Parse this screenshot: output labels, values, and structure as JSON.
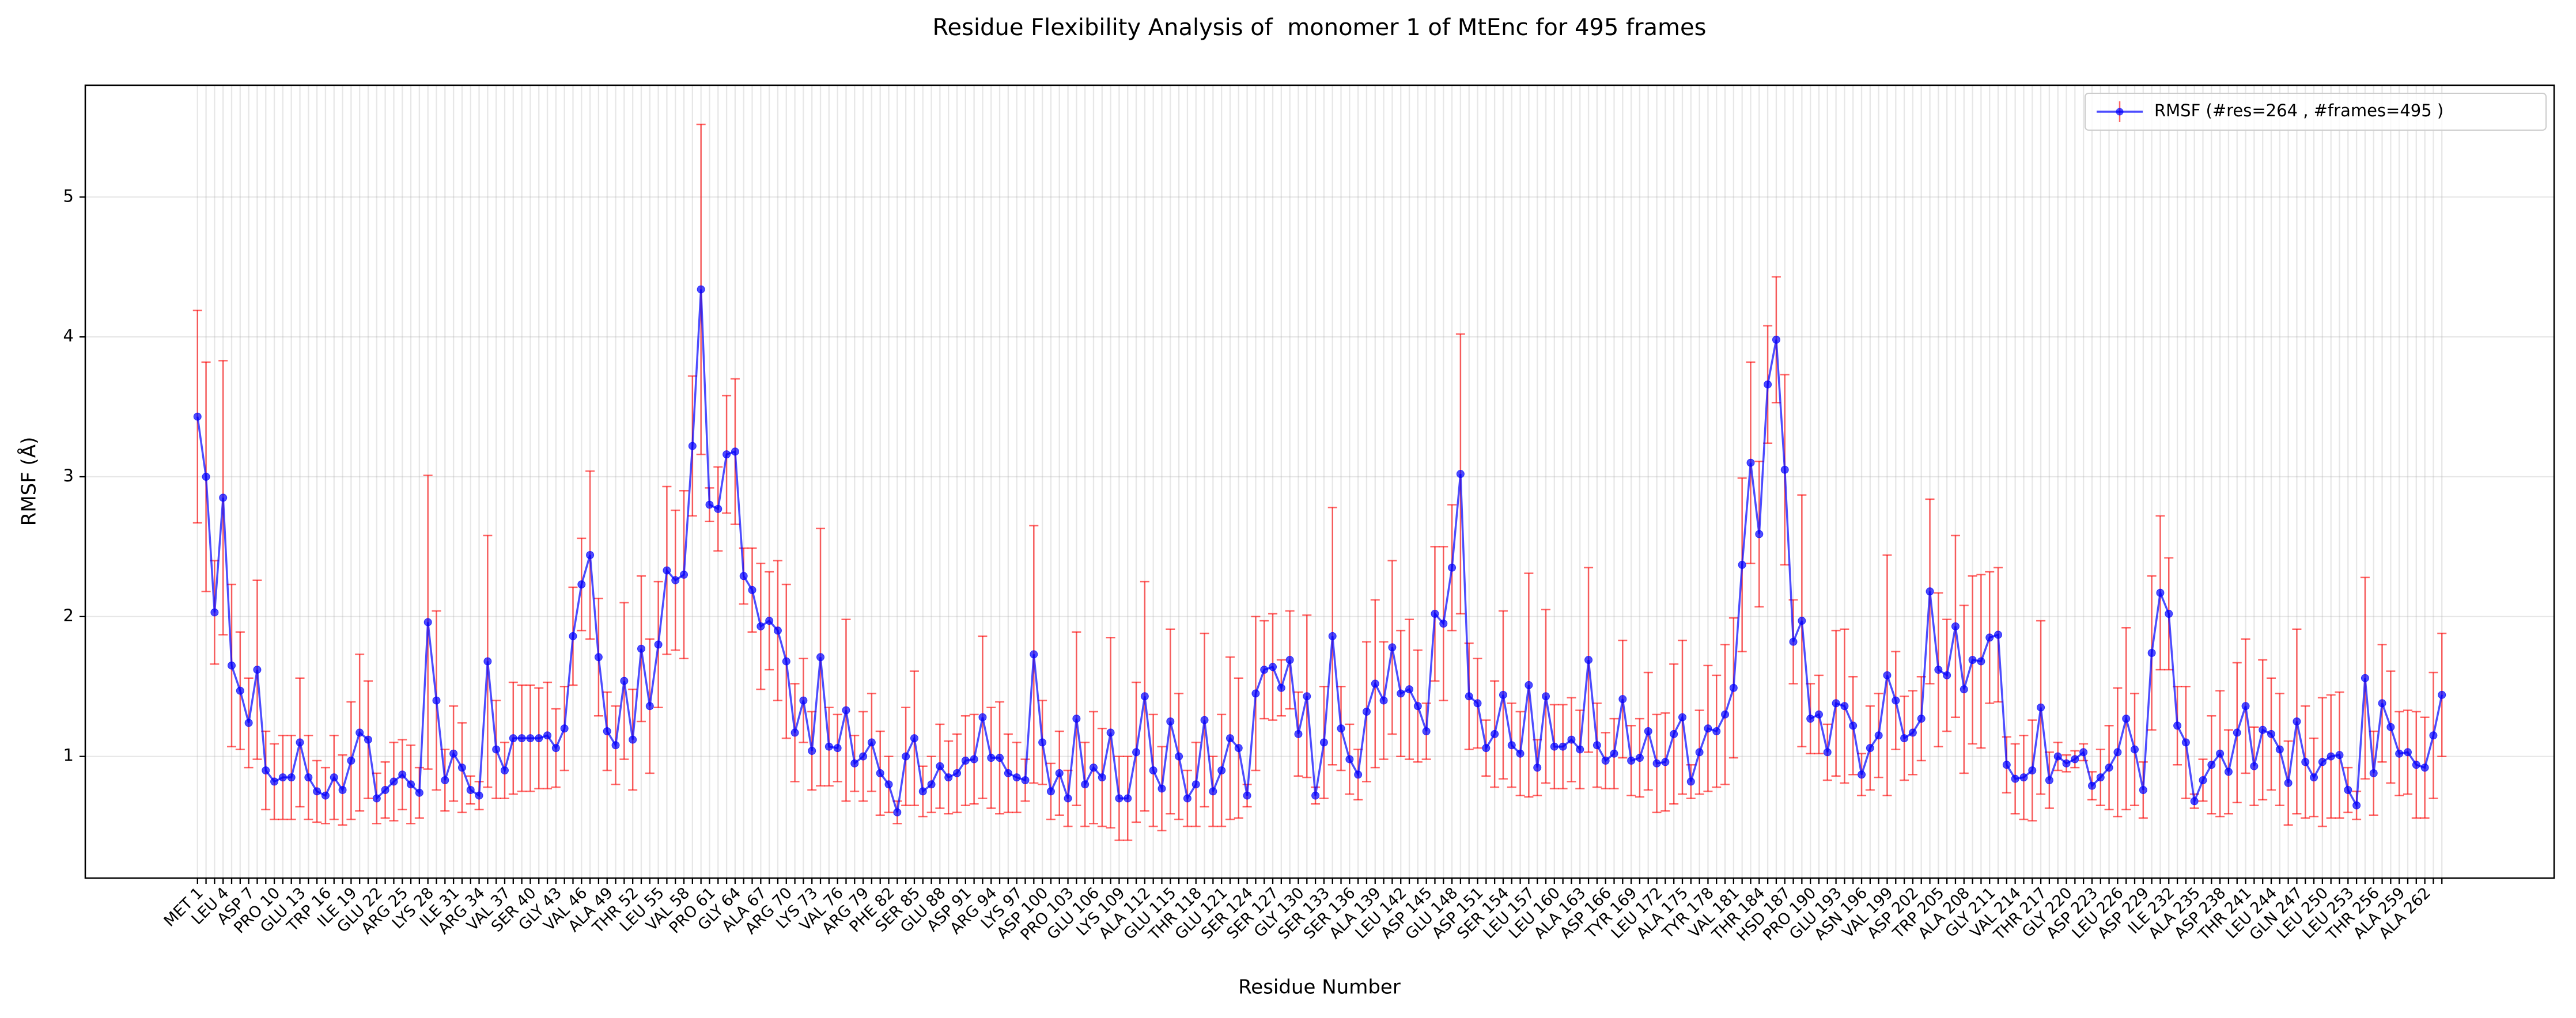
{
  "chart_data": {
    "type": "line",
    "title": "Residue Flexibility Analysis of  monomer 1 of MtEnc for 495 frames",
    "x_label": "Residue Number",
    "y_label": "RMSF (Å)",
    "legend": "upper right",
    "grid": true,
    "ylim": [
      0.13,
      5.8
    ],
    "yticks": [
      1,
      2,
      3,
      4,
      5
    ],
    "categories": [
      "MET 1",
      null,
      null,
      "LEU 4",
      null,
      null,
      "ASP 7",
      null,
      null,
      "PRO 10",
      null,
      null,
      "GLU 13",
      null,
      null,
      "TRP 16",
      null,
      null,
      "ILE 19",
      null,
      null,
      "GLU 22",
      null,
      null,
      "ARG 25",
      null,
      null,
      "LYS 28",
      null,
      null,
      "ILE 31",
      null,
      null,
      "ARG 34",
      null,
      null,
      "VAL 37",
      null,
      null,
      "SER 40",
      null,
      null,
      "GLY 43",
      null,
      null,
      "VAL 46",
      null,
      null,
      "ALA 49",
      null,
      null,
      "THR 52",
      null,
      null,
      "LEU 55",
      null,
      null,
      "VAL 58",
      null,
      null,
      "PRO 61",
      null,
      null,
      "GLY 64",
      null,
      null,
      "ALA 67",
      null,
      null,
      "ARG 70",
      null,
      null,
      "LYS 73",
      null,
      null,
      "VAL 76",
      null,
      null,
      "ARG 79",
      null,
      null,
      "PHE 82",
      null,
      null,
      "SER 85",
      null,
      null,
      "GLU 88",
      null,
      null,
      "ASP 91",
      null,
      null,
      "ARG 94",
      null,
      null,
      "LYS 97",
      null,
      null,
      "ASP 100",
      null,
      null,
      "PRO 103",
      null,
      null,
      "GLU 106",
      null,
      null,
      "LYS 109",
      null,
      null,
      "ALA 112",
      null,
      null,
      "GLU 115",
      null,
      null,
      "THR 118",
      null,
      null,
      "GLU 121",
      null,
      null,
      "SER 124",
      null,
      null,
      "SER 127",
      null,
      null,
      "GLY 130",
      null,
      null,
      "SER 133",
      null,
      null,
      "SER 136",
      null,
      null,
      "ALA 139",
      null,
      null,
      "LEU 142",
      null,
      null,
      "ASP 145",
      null,
      null,
      "GLU 148",
      null,
      null,
      "ASP 151",
      null,
      null,
      "SER 154",
      null,
      null,
      "LEU 157",
      null,
      null,
      "LEU 160",
      null,
      null,
      "ALA 163",
      null,
      null,
      "ASP 166",
      null,
      null,
      "TYR 169",
      null,
      null,
      "LEU 172",
      null,
      null,
      "ALA 175",
      null,
      null,
      "TYR 178",
      null,
      null,
      "VAL 181",
      null,
      null,
      "THR 184",
      null,
      null,
      "HSD 187",
      null,
      null,
      "PRO 190",
      null,
      null,
      "GLU 193",
      null,
      null,
      "ASN 196",
      null,
      null,
      "VAL 199",
      null,
      null,
      "ASP 202",
      null,
      null,
      "TRP 205",
      null,
      null,
      "ALA 208",
      null,
      null,
      "GLY 211",
      null,
      null,
      "VAL 214",
      null,
      null,
      "THR 217",
      null,
      null,
      "GLY 220",
      null,
      null,
      "ASP 223",
      null,
      null,
      "LEU 226",
      null,
      null,
      "ASP 229",
      null,
      null,
      "ILE 232",
      null,
      null,
      "ALA 235",
      null,
      null,
      "ASP 238",
      null,
      null,
      "THR 241",
      null,
      null,
      "LEU 244",
      null,
      null,
      "GLN 247",
      null,
      null,
      "LEU 250",
      null,
      null,
      "LEU 253",
      null,
      null,
      "THR 256",
      null,
      null,
      "ALA 259",
      null,
      null,
      "ALA 262",
      null,
      null
    ],
    "series": [
      {
        "name": "RMSF (#res=264 , #frames=495 )",
        "color": "#0000ff",
        "error_color": "#ff0000",
        "values": [
          3.43,
          3.0,
          2.03,
          2.85,
          1.65,
          1.47,
          1.24,
          1.62,
          0.9,
          0.82,
          0.85,
          0.85,
          1.1,
          0.85,
          0.75,
          0.72,
          0.85,
          0.76,
          0.97,
          1.17,
          1.12,
          0.7,
          0.76,
          0.82,
          0.87,
          0.8,
          0.74,
          1.96,
          1.4,
          0.83,
          1.02,
          0.92,
          0.76,
          0.72,
          1.68,
          1.05,
          0.9,
          1.13,
          1.13,
          1.13,
          1.13,
          1.15,
          1.06,
          1.2,
          1.86,
          2.23,
          2.44,
          1.71,
          1.18,
          1.08,
          1.54,
          1.12,
          1.77,
          1.36,
          1.8,
          2.33,
          2.26,
          2.3,
          3.22,
          4.34,
          2.8,
          2.77,
          3.16,
          3.18,
          2.29,
          2.19,
          1.93,
          1.97,
          1.9,
          1.68,
          1.17,
          1.4,
          1.04,
          1.71,
          1.07,
          1.06,
          1.33,
          0.95,
          1.0,
          1.1,
          0.88,
          0.8,
          0.6,
          1.0,
          1.13,
          0.75,
          0.8,
          0.93,
          0.85,
          0.88,
          0.97,
          0.98,
          1.28,
          0.99,
          0.99,
          0.88,
          0.85,
          0.83,
          1.73,
          1.1,
          0.75,
          0.88,
          0.7,
          1.27,
          0.8,
          0.92,
          0.85,
          1.17,
          0.7,
          0.7,
          1.03,
          1.43,
          0.9,
          0.77,
          1.25,
          1.0,
          0.7,
          0.8,
          1.26,
          0.75,
          0.9,
          1.13,
          1.06,
          0.72,
          1.45,
          1.62,
          1.64,
          1.49,
          1.69,
          1.16,
          1.43,
          0.72,
          1.1,
          1.86,
          1.2,
          0.98,
          0.87,
          1.32,
          1.52,
          1.4,
          1.78,
          1.45,
          1.48,
          1.36,
          1.18,
          2.02,
          1.95,
          2.35,
          3.02,
          1.43,
          1.38,
          1.06,
          1.16,
          1.44,
          1.08,
          1.02,
          1.51,
          0.92,
          1.43,
          1.07,
          1.07,
          1.12,
          1.05,
          1.69,
          1.08,
          0.97,
          1.02,
          1.41,
          0.97,
          0.99,
          1.18,
          0.95,
          0.96,
          1.16,
          1.28,
          0.82,
          1.03,
          1.2,
          1.18,
          1.3,
          1.49,
          2.37,
          3.1,
          2.59,
          3.66,
          3.98,
          3.05,
          1.82,
          1.97,
          1.27,
          1.3,
          1.03,
          1.38,
          1.36,
          1.22,
          0.87,
          1.06,
          1.15,
          1.58,
          1.4,
          1.13,
          1.17,
          1.27,
          2.18,
          1.62,
          1.58,
          1.93,
          1.48,
          1.69,
          1.68,
          1.85,
          1.87,
          0.94,
          0.84,
          0.85,
          0.9,
          1.35,
          0.83,
          1.0,
          0.95,
          0.98,
          1.03,
          0.79,
          0.85,
          0.92,
          1.03,
          1.27,
          1.05,
          0.76,
          1.74,
          2.17,
          2.02,
          1.22,
          1.1,
          0.68,
          0.83,
          0.94,
          1.02,
          0.89,
          1.17,
          1.36,
          0.93,
          1.19,
          1.16,
          1.05,
          0.81,
          1.25,
          0.96,
          0.85,
          0.96,
          1.0,
          1.01,
          0.76,
          0.65,
          1.56,
          0.88,
          1.38,
          1.21,
          1.02,
          1.03,
          0.94,
          0.92,
          1.15,
          1.44
        ],
        "errors": [
          0.76,
          0.82,
          0.37,
          0.98,
          0.58,
          0.42,
          0.32,
          0.64,
          0.28,
          0.27,
          0.3,
          0.3,
          0.46,
          0.3,
          0.22,
          0.2,
          0.3,
          0.25,
          0.42,
          0.56,
          0.42,
          0.18,
          0.2,
          0.28,
          0.25,
          0.28,
          0.18,
          1.05,
          0.64,
          0.22,
          0.34,
          0.32,
          0.1,
          0.1,
          0.9,
          0.35,
          0.2,
          0.4,
          0.38,
          0.38,
          0.36,
          0.38,
          0.28,
          0.3,
          0.35,
          0.33,
          0.6,
          0.42,
          0.28,
          0.28,
          0.56,
          0.36,
          0.52,
          0.48,
          0.45,
          0.6,
          0.5,
          0.6,
          0.5,
          1.18,
          0.12,
          0.3,
          0.42,
          0.52,
          0.2,
          0.3,
          0.45,
          0.35,
          0.5,
          0.55,
          0.35,
          0.3,
          0.28,
          0.92,
          0.28,
          0.24,
          0.65,
          0.2,
          0.32,
          0.35,
          0.3,
          0.2,
          0.08,
          0.35,
          0.48,
          0.18,
          0.2,
          0.3,
          0.26,
          0.28,
          0.32,
          0.32,
          0.58,
          0.36,
          0.4,
          0.28,
          0.25,
          0.15,
          0.92,
          0.3,
          0.2,
          0.3,
          0.2,
          0.62,
          0.3,
          0.4,
          0.35,
          0.68,
          0.3,
          0.3,
          0.5,
          0.82,
          0.4,
          0.3,
          0.66,
          0.45,
          0.2,
          0.3,
          0.62,
          0.25,
          0.4,
          0.58,
          0.5,
          0.08,
          0.55,
          0.35,
          0.38,
          0.2,
          0.35,
          0.3,
          0.58,
          0.06,
          0.4,
          0.92,
          0.3,
          0.25,
          0.18,
          0.5,
          0.6,
          0.42,
          0.62,
          0.45,
          0.5,
          0.4,
          0.2,
          0.48,
          0.55,
          0.45,
          1.0,
          0.38,
          0.32,
          0.2,
          0.38,
          0.6,
          0.3,
          0.3,
          0.8,
          0.2,
          0.62,
          0.3,
          0.3,
          0.3,
          0.28,
          0.66,
          0.3,
          0.2,
          0.25,
          0.42,
          0.25,
          0.28,
          0.42,
          0.35,
          0.35,
          0.5,
          0.55,
          0.12,
          0.3,
          0.45,
          0.4,
          0.5,
          0.5,
          0.62,
          0.72,
          0.52,
          0.42,
          0.45,
          0.68,
          0.3,
          0.9,
          0.25,
          0.28,
          0.2,
          0.52,
          0.55,
          0.35,
          0.15,
          0.3,
          0.3,
          0.86,
          0.35,
          0.3,
          0.3,
          0.3,
          0.66,
          0.55,
          0.4,
          0.65,
          0.6,
          0.6,
          0.62,
          0.47,
          0.48,
          0.2,
          0.25,
          0.3,
          0.36,
          0.62,
          0.2,
          0.1,
          0.06,
          0.06,
          0.06,
          0.1,
          0.2,
          0.3,
          0.46,
          0.65,
          0.4,
          0.2,
          0.55,
          0.55,
          0.4,
          0.28,
          0.4,
          0.05,
          0.15,
          0.35,
          0.45,
          0.3,
          0.5,
          0.48,
          0.28,
          0.5,
          0.4,
          0.4,
          0.3,
          0.66,
          0.4,
          0.28,
          0.46,
          0.44,
          0.45,
          0.16,
          0.1,
          0.72,
          0.3,
          0.42,
          0.4,
          0.3,
          0.3,
          0.38,
          0.36,
          0.45,
          0.44
        ]
      }
    ]
  }
}
